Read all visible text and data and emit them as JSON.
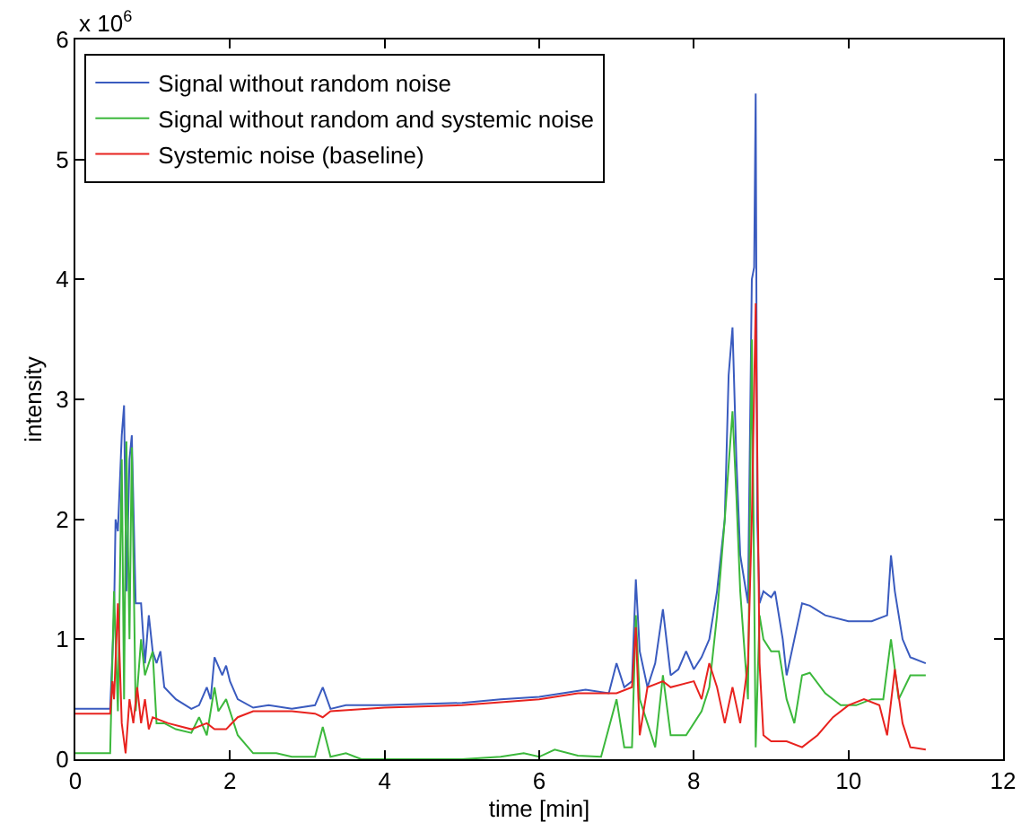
{
  "chart_data": {
    "type": "line",
    "xlabel": "time [min]",
    "ylabel": "intensity",
    "annotations": [
      "x 10$^{6}$"
    ],
    "xlim": [
      0,
      12
    ],
    "xticks": [
      0,
      2,
      4,
      6,
      8,
      10,
      12
    ],
    "ylim": [
      0,
      6
    ],
    "yticks": [
      0,
      1,
      2,
      3,
      4,
      5,
      6
    ],
    "legend": "top left",
    "marker": "none",
    "line_style": "solid",
    "series": [
      {
        "name": "Signal without random noise",
        "color": "#3a5bbf",
        "x": [
          0,
          0.45,
          0.5,
          0.52,
          0.55,
          0.6,
          0.63,
          0.66,
          0.7,
          0.73,
          0.78,
          0.85,
          0.9,
          0.95,
          1.0,
          1.05,
          1.1,
          1.15,
          1.3,
          1.5,
          1.6,
          1.7,
          1.75,
          1.8,
          1.9,
          1.95,
          2.0,
          2.1,
          2.3,
          2.5,
          2.8,
          3.1,
          3.2,
          3.3,
          3.5,
          4,
          5,
          5.5,
          6,
          6.3,
          6.6,
          6.9,
          7.0,
          7.1,
          7.2,
          7.25,
          7.3,
          7.4,
          7.5,
          7.6,
          7.7,
          7.8,
          7.9,
          8.0,
          8.1,
          8.2,
          8.3,
          8.4,
          8.45,
          8.5,
          8.55,
          8.6,
          8.7,
          8.75,
          8.78,
          8.8,
          8.82,
          8.85,
          8.9,
          9.0,
          9.05,
          9.15,
          9.2,
          9.3,
          9.4,
          9.5,
          9.7,
          10,
          10.3,
          10.5,
          10.55,
          10.6,
          10.7,
          10.8,
          11.0
        ],
        "values": [
          0.42,
          0.42,
          1.2,
          2.0,
          1.9,
          2.7,
          2.95,
          1.4,
          2.5,
          2.7,
          1.3,
          1.3,
          0.8,
          1.2,
          0.9,
          0.8,
          0.9,
          0.6,
          0.5,
          0.42,
          0.45,
          0.6,
          0.5,
          0.85,
          0.7,
          0.78,
          0.65,
          0.5,
          0.43,
          0.45,
          0.42,
          0.45,
          0.6,
          0.42,
          0.45,
          0.45,
          0.47,
          0.5,
          0.52,
          0.55,
          0.58,
          0.55,
          0.8,
          0.6,
          0.65,
          1.5,
          0.9,
          0.6,
          0.8,
          1.25,
          0.7,
          0.75,
          0.9,
          0.75,
          0.85,
          1.0,
          1.4,
          2.0,
          3.2,
          3.6,
          2.5,
          1.7,
          1.3,
          4.0,
          4.1,
          5.55,
          2.0,
          1.3,
          1.4,
          1.35,
          1.4,
          1.0,
          0.7,
          1.0,
          1.3,
          1.28,
          1.2,
          1.15,
          1.15,
          1.2,
          1.7,
          1.4,
          1.0,
          0.85,
          0.8
        ]
      },
      {
        "name": "Signal without random and systemic noise",
        "color": "#3cb83c",
        "x": [
          0,
          0.45,
          0.5,
          0.55,
          0.6,
          0.63,
          0.66,
          0.7,
          0.73,
          0.78,
          0.85,
          0.9,
          1.0,
          1.05,
          1.15,
          1.3,
          1.5,
          1.6,
          1.7,
          1.8,
          1.85,
          1.95,
          2.1,
          2.3,
          2.6,
          2.8,
          3.1,
          3.2,
          3.3,
          3.5,
          3.7,
          5,
          5.5,
          5.8,
          6.0,
          6.2,
          6.5,
          6.8,
          7.0,
          7.1,
          7.2,
          7.25,
          7.3,
          7.4,
          7.5,
          7.6,
          7.7,
          7.9,
          8.1,
          8.2,
          8.3,
          8.4,
          8.5,
          8.55,
          8.6,
          8.7,
          8.75,
          8.8,
          8.85,
          8.9,
          9.0,
          9.1,
          9.2,
          9.3,
          9.4,
          9.5,
          9.7,
          9.9,
          10.1,
          10.3,
          10.45,
          10.55,
          10.65,
          10.8,
          11.0
        ],
        "values": [
          0.05,
          0.05,
          1.4,
          0.4,
          2.5,
          0.5,
          2.65,
          1.0,
          2.6,
          0.4,
          1.0,
          0.7,
          0.9,
          0.3,
          0.3,
          0.25,
          0.22,
          0.35,
          0.2,
          0.6,
          0.4,
          0.5,
          0.2,
          0.05,
          0.05,
          0.02,
          0.02,
          0.27,
          0.02,
          0.05,
          0.0,
          0.0,
          0.02,
          0.05,
          0.02,
          0.08,
          0.03,
          0.02,
          0.5,
          0.1,
          0.1,
          1.2,
          0.5,
          0.3,
          0.1,
          0.7,
          0.2,
          0.2,
          0.4,
          0.6,
          1.2,
          2.0,
          2.9,
          2.2,
          1.4,
          0.5,
          3.5,
          0.1,
          1.2,
          1.0,
          0.9,
          0.9,
          0.5,
          0.3,
          0.7,
          0.72,
          0.55,
          0.45,
          0.45,
          0.5,
          0.5,
          1.0,
          0.5,
          0.7,
          0.7
        ]
      },
      {
        "name": "Systemic noise (baseline)",
        "color": "#e8231f",
        "x": [
          0,
          0.45,
          0.48,
          0.5,
          0.55,
          0.6,
          0.65,
          0.7,
          0.75,
          0.8,
          0.85,
          0.9,
          0.95,
          1.0,
          1.2,
          1.5,
          1.7,
          1.8,
          1.95,
          2.1,
          2.3,
          2.8,
          3.1,
          3.2,
          3.3,
          4,
          5,
          6,
          6.5,
          7.0,
          7.2,
          7.25,
          7.3,
          7.4,
          7.6,
          7.7,
          8.0,
          8.1,
          8.2,
          8.3,
          8.4,
          8.5,
          8.6,
          8.7,
          8.75,
          8.8,
          8.85,
          8.9,
          9.0,
          9.2,
          9.4,
          9.6,
          9.8,
          10.0,
          10.2,
          10.4,
          10.5,
          10.6,
          10.7,
          10.8,
          11.0
        ],
        "values": [
          0.38,
          0.38,
          0.65,
          0.5,
          1.3,
          0.3,
          0.05,
          0.5,
          0.3,
          0.6,
          0.3,
          0.5,
          0.25,
          0.35,
          0.3,
          0.25,
          0.3,
          0.25,
          0.25,
          0.35,
          0.4,
          0.4,
          0.38,
          0.35,
          0.4,
          0.43,
          0.45,
          0.5,
          0.55,
          0.55,
          0.6,
          1.1,
          0.2,
          0.6,
          0.65,
          0.6,
          0.65,
          0.5,
          0.8,
          0.6,
          0.3,
          0.6,
          0.3,
          0.8,
          2.0,
          3.8,
          0.8,
          0.2,
          0.15,
          0.15,
          0.1,
          0.2,
          0.35,
          0.45,
          0.5,
          0.45,
          0.2,
          0.75,
          0.3,
          0.1,
          0.08
        ]
      }
    ]
  }
}
